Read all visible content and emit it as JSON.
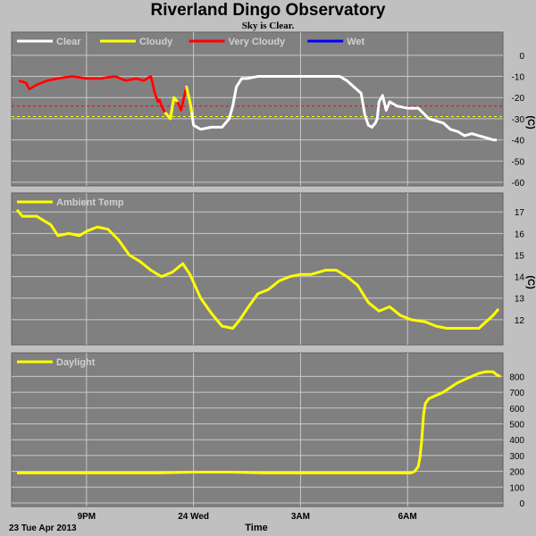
{
  "header": {
    "title": "Riverland Dingo Observatory",
    "subtitle": "Sky is Clear."
  },
  "footer": {
    "date_label": "23 Tue Apr 2013",
    "time_label": "Time"
  },
  "x_ticks": [
    "9PM",
    "24 Wed",
    "3AM",
    "6AM"
  ],
  "colors": {
    "background": "#c0c0c0",
    "plot_bg": "#808080",
    "grid": "#c8c8c8",
    "clear": "#ffffff",
    "cloudy": "#ffff00",
    "very_cloudy": "#ff0000",
    "wet": "#0000ff",
    "temp": "#ffff00",
    "daylight": "#ffff00"
  },
  "chart_data": [
    {
      "type": "line",
      "panel": "sky",
      "ylabel": "(C)",
      "ylim": [
        -60,
        5
      ],
      "yticks": [
        0,
        -10,
        -20,
        -30,
        -40,
        -50,
        -60
      ],
      "xlim": [
        19,
        32.6
      ],
      "x_tick_hours": [
        21,
        24,
        27,
        30
      ],
      "grid": true,
      "thresholds": [
        {
          "value": -24,
          "color": "#ff0000"
        },
        {
          "value": -29,
          "color": "#ffff00"
        }
      ],
      "legend": [
        {
          "label": "Clear",
          "color": "#ffffff"
        },
        {
          "label": "Cloudy",
          "color": "#ffff00"
        },
        {
          "label": "Very Cloudy",
          "color": "#ff0000"
        },
        {
          "label": "Wet",
          "color": "#0000ff"
        }
      ],
      "legend_placement": "top-left",
      "x": [
        19.1,
        19.3,
        19.4,
        19.6,
        19.9,
        20.2,
        20.6,
        21.0,
        21.4,
        21.8,
        22.1,
        22.4,
        22.6,
        22.8,
        22.85,
        22.9,
        23.0,
        23.05,
        23.1,
        23.2,
        23.35,
        23.45,
        23.55,
        23.65,
        23.8,
        23.9,
        23.95,
        24.0,
        24.2,
        24.5,
        24.8,
        25.0,
        25.1,
        25.2,
        25.35,
        25.5,
        25.8,
        26.2,
        26.6,
        27.0,
        27.4,
        27.8,
        28.1,
        28.3,
        28.5,
        28.7,
        28.75,
        28.8,
        28.9,
        29.0,
        29.1,
        29.15,
        29.2,
        29.3,
        29.4,
        29.5,
        29.7,
        30.0,
        30.3,
        30.6,
        30.8,
        31.0,
        31.2,
        31.4,
        31.6,
        31.8,
        32.0,
        32.2,
        32.4,
        32.5
      ],
      "values": [
        -12,
        -13,
        -16,
        -14,
        -12,
        -11,
        -10,
        -11,
        -11,
        -10,
        -12,
        -11,
        -12,
        -10,
        -13,
        -17,
        -22,
        -21,
        -24,
        -27,
        -30,
        -20,
        -22,
        -26,
        -15,
        -22,
        -27,
        -33,
        -35,
        -34,
        -34,
        -30,
        -24,
        -15,
        -11,
        -11,
        -10,
        -10,
        -10,
        -10,
        -10,
        -10,
        -10,
        -12,
        -15,
        -18,
        -23,
        -28,
        -33,
        -34,
        -32,
        -30,
        -22,
        -19,
        -26,
        -22,
        -24,
        -25,
        -25,
        -30,
        -31,
        -32,
        -35,
        -36,
        -38,
        -37,
        -38,
        -39,
        -40,
        -40
      ],
      "values_note": "",
      "segments": [
        {
          "from": 0,
          "to": 19,
          "state": "Very Cloudy"
        },
        {
          "from": 19,
          "to": 22,
          "state": "Cloudy"
        },
        {
          "from": 22,
          "to": 24,
          "state": "Very Cloudy"
        },
        {
          "from": 24,
          "to": 26,
          "state": "Cloudy"
        }
      ]
    },
    {
      "type": "line",
      "panel": "temp",
      "ylabel": "(C)",
      "ylim": [
        11,
        17.3
      ],
      "yticks": [
        12,
        13,
        14,
        15,
        16,
        17
      ],
      "xlim": [
        19,
        32.6
      ],
      "x_tick_hours": [
        21,
        24,
        27,
        30
      ],
      "grid": true,
      "legend": [
        {
          "label": "Ambient Temp",
          "color": "#ffff00"
        }
      ],
      "legend_placement": "top-left",
      "series_name": "Ambient Temp",
      "x": [
        19.05,
        19.2,
        19.6,
        20.0,
        20.2,
        20.5,
        20.8,
        21.0,
        21.3,
        21.6,
        21.9,
        22.2,
        22.5,
        22.8,
        23.1,
        23.4,
        23.7,
        23.9,
        24.2,
        24.5,
        24.8,
        25.1,
        25.3,
        25.5,
        25.8,
        26.1,
        26.4,
        26.7,
        27.0,
        27.3,
        27.7,
        28.0,
        28.3,
        28.6,
        28.9,
        29.2,
        29.5,
        29.8,
        30.1,
        30.5,
        30.8,
        31.1,
        31.4,
        31.7,
        32.0,
        32.2,
        32.4,
        32.55
      ],
      "values": [
        17.1,
        16.8,
        16.8,
        16.4,
        15.9,
        16.0,
        15.9,
        16.1,
        16.3,
        16.2,
        15.7,
        15.0,
        14.7,
        14.3,
        14.0,
        14.2,
        14.6,
        14.1,
        13.0,
        12.3,
        11.7,
        11.6,
        12.0,
        12.5,
        13.2,
        13.4,
        13.8,
        14.0,
        14.1,
        14.1,
        14.3,
        14.3,
        14.0,
        13.6,
        12.8,
        12.4,
        12.6,
        12.2,
        12.0,
        11.9,
        11.7,
        11.6,
        11.6,
        11.6,
        11.6,
        11.9,
        12.2,
        12.5
      ]
    },
    {
      "type": "line",
      "panel": "daylight",
      "ylabel": "",
      "ylim": [
        0,
        870
      ],
      "yticks": [
        0,
        100,
        200,
        300,
        400,
        500,
        600,
        700,
        800
      ],
      "xlim": [
        19,
        32.6
      ],
      "x_tick_hours": [
        21,
        24,
        27,
        30
      ],
      "grid": true,
      "legend": [
        {
          "label": "Daylight",
          "color": "#ffff00"
        }
      ],
      "legend_placement": "top-left",
      "series_name": "Daylight",
      "x": [
        19.05,
        20.0,
        21.0,
        22.0,
        23.0,
        24.0,
        25.0,
        26.0,
        27.0,
        28.0,
        29.0,
        30.0,
        30.1,
        30.2,
        30.3,
        30.35,
        30.4,
        30.45,
        30.5,
        30.6,
        30.8,
        31.0,
        31.2,
        31.4,
        31.6,
        31.8,
        32.0,
        32.2,
        32.4,
        32.5,
        32.6
      ],
      "values": [
        190,
        190,
        190,
        190,
        190,
        195,
        195,
        190,
        190,
        190,
        190,
        190,
        190,
        200,
        230,
        290,
        400,
        560,
        630,
        660,
        680,
        700,
        730,
        760,
        780,
        800,
        820,
        830,
        830,
        810,
        800
      ]
    }
  ]
}
